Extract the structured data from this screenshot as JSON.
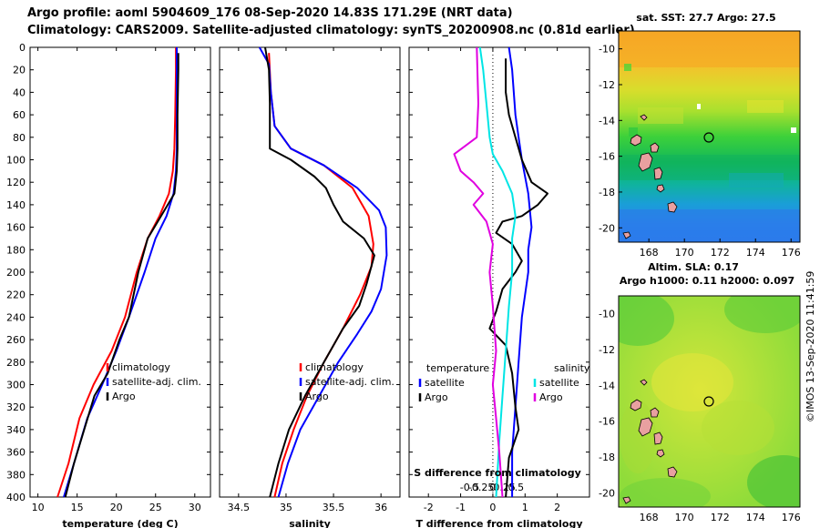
{
  "header": {
    "line1": "Argo profile: aoml 5904609_176 08-Sep-2020 14.83S 171.29E (NRT data)",
    "line2": "Climatology: CARS2009. Satellite-adjusted climatology: synTS_20200908.nc (0.81d earlier)"
  },
  "footer": {
    "stamp": "©IMOS 13-Sep-2020 11:41:59"
  },
  "colors": {
    "climatology": "#ff0000",
    "satellite": "#0000ff",
    "argo": "#000000",
    "t_sat": "#00e5e5",
    "s_diff": "#e000e0"
  },
  "chart_data": [
    {
      "type": "line",
      "id": "temperature",
      "xlabel": "temperature (deg C)",
      "ylabel": "depth",
      "xlim": [
        9,
        32
      ],
      "ylim": [
        400,
        0
      ],
      "xticks": [
        10,
        15,
        20,
        25,
        30
      ],
      "yticks": [
        0,
        20,
        40,
        60,
        80,
        100,
        120,
        140,
        160,
        180,
        200,
        220,
        240,
        260,
        280,
        300,
        320,
        340,
        360,
        380,
        400
      ],
      "legend": [
        "climatology",
        "satellite-adj. clim.",
        "Argo"
      ],
      "series": [
        {
          "name": "climatology",
          "color": "red",
          "points": [
            [
              27.6,
              0
            ],
            [
              27.6,
              20
            ],
            [
              27.5,
              60
            ],
            [
              27.4,
              90
            ],
            [
              27.2,
              110
            ],
            [
              26.7,
              130
            ],
            [
              25.5,
              150
            ],
            [
              24.0,
              170
            ],
            [
              22.6,
              200
            ],
            [
              21.1,
              240
            ],
            [
              19.4,
              270
            ],
            [
              17.1,
              300
            ],
            [
              15.3,
              330
            ],
            [
              13.9,
              370
            ],
            [
              12.5,
              400
            ]
          ]
        },
        {
          "name": "satellite-adj. clim.",
          "color": "blue",
          "points": [
            [
              27.7,
              0
            ],
            [
              27.7,
              20
            ],
            [
              27.7,
              60
            ],
            [
              27.7,
              90
            ],
            [
              27.6,
              110
            ],
            [
              27.3,
              130
            ],
            [
              26.4,
              150
            ],
            [
              25.0,
              170
            ],
            [
              23.6,
              200
            ],
            [
              21.6,
              240
            ],
            [
              20.0,
              270
            ],
            [
              18.2,
              300
            ],
            [
              16.3,
              330
            ],
            [
              14.6,
              370
            ],
            [
              13.3,
              400
            ]
          ]
        },
        {
          "name": "Argo",
          "color": "black",
          "points": [
            [
              27.9,
              5
            ],
            [
              27.9,
              20
            ],
            [
              27.8,
              60
            ],
            [
              27.8,
              90
            ],
            [
              27.7,
              110
            ],
            [
              27.4,
              130
            ],
            [
              25.7,
              150
            ],
            [
              24.0,
              170
            ],
            [
              22.8,
              200
            ],
            [
              21.6,
              240
            ],
            [
              20.4,
              260
            ],
            [
              18.9,
              290
            ],
            [
              17.2,
              310
            ],
            [
              15.9,
              340
            ],
            [
              14.6,
              370
            ],
            [
              13.5,
              400
            ]
          ]
        }
      ]
    },
    {
      "type": "line",
      "id": "salinity",
      "xlabel": "salinity",
      "ylabel": "depth",
      "xlim": [
        34.3,
        36.2
      ],
      "ylim": [
        400,
        0
      ],
      "xticks": [
        34.5,
        35,
        35.5,
        36
      ],
      "yticks": [],
      "legend": [
        "climatology",
        "satellite-adj. clim.",
        "Argo"
      ],
      "series": [
        {
          "name": "climatology",
          "color": "red",
          "points": [
            [
              34.82,
              5
            ],
            [
              34.84,
              40
            ],
            [
              34.88,
              70
            ],
            [
              35.05,
              90
            ],
            [
              35.4,
              105
            ],
            [
              35.7,
              125
            ],
            [
              35.87,
              150
            ],
            [
              35.92,
              175
            ],
            [
              35.9,
              195
            ],
            [
              35.78,
              220
            ],
            [
              35.6,
              250
            ],
            [
              35.4,
              280
            ],
            [
              35.22,
              310
            ],
            [
              35.08,
              340
            ],
            [
              34.96,
              370
            ],
            [
              34.88,
              400
            ]
          ]
        },
        {
          "name": "satellite-adj. clim.",
          "color": "blue",
          "points": [
            [
              34.72,
              0
            ],
            [
              34.82,
              15
            ],
            [
              34.84,
              40
            ],
            [
              34.88,
              70
            ],
            [
              35.05,
              90
            ],
            [
              35.4,
              105
            ],
            [
              35.75,
              125
            ],
            [
              35.98,
              145
            ],
            [
              36.05,
              160
            ],
            [
              36.06,
              185
            ],
            [
              36.0,
              215
            ],
            [
              35.9,
              235
            ],
            [
              35.75,
              255
            ],
            [
              35.55,
              280
            ],
            [
              35.35,
              310
            ],
            [
              35.15,
              340
            ],
            [
              35.02,
              370
            ],
            [
              34.92,
              400
            ]
          ]
        },
        {
          "name": "Argo",
          "color": "black",
          "points": [
            [
              34.78,
              0
            ],
            [
              34.82,
              20
            ],
            [
              34.83,
              50
            ],
            [
              34.83,
              90
            ],
            [
              35.05,
              100
            ],
            [
              35.3,
              115
            ],
            [
              35.42,
              125
            ],
            [
              35.5,
              140
            ],
            [
              35.6,
              155
            ],
            [
              35.82,
              170
            ],
            [
              35.93,
              185
            ],
            [
              35.85,
              210
            ],
            [
              35.77,
              230
            ],
            [
              35.6,
              250
            ],
            [
              35.4,
              280
            ],
            [
              35.2,
              310
            ],
            [
              35.03,
              340
            ],
            [
              34.92,
              370
            ],
            [
              34.83,
              400
            ]
          ]
        }
      ]
    },
    {
      "type": "line",
      "id": "differences",
      "xlabel": "T difference from climatology",
      "xlabel2": "S difference from climatology",
      "xlim": [
        -2.6,
        3.0
      ],
      "ylim": [
        400,
        0
      ],
      "xticks": [
        -2,
        -1,
        0,
        1,
        2
      ],
      "xticks2": [
        -0.5,
        -0.25,
        0,
        0.25,
        0.5
      ],
      "xticks2_labels": [
        "-0.5",
        "-0.25",
        "0",
        "0.25",
        "0.5"
      ],
      "yticks": [],
      "legend_left_title": "temperature",
      "legend_right_title": "salinity",
      "legend_left": [
        "satellite",
        "Argo"
      ],
      "legend_right": [
        "satellite",
        "Argo"
      ],
      "series": [
        {
          "name": "T satellite",
          "color": "blue",
          "points": [
            [
              0.5,
              0
            ],
            [
              0.6,
              20
            ],
            [
              0.7,
              60
            ],
            [
              0.8,
              80
            ],
            [
              0.9,
              100
            ],
            [
              1.1,
              130
            ],
            [
              1.2,
              160
            ],
            [
              1.1,
              180
            ],
            [
              1.1,
              200
            ],
            [
              0.9,
              240
            ],
            [
              0.8,
              280
            ],
            [
              0.7,
              320
            ],
            [
              0.6,
              360
            ],
            [
              0.6,
              400
            ]
          ]
        },
        {
          "name": "T Argo",
          "color": "black",
          "points": [
            [
              0.4,
              10
            ],
            [
              0.4,
              40
            ],
            [
              0.5,
              60
            ],
            [
              0.7,
              80
            ],
            [
              0.9,
              100
            ],
            [
              1.2,
              120
            ],
            [
              1.7,
              130
            ],
            [
              1.4,
              140
            ],
            [
              0.9,
              150
            ],
            [
              0.3,
              155
            ],
            [
              0.1,
              165
            ],
            [
              0.6,
              175
            ],
            [
              0.9,
              190
            ],
            [
              0.7,
              200
            ],
            [
              0.3,
              215
            ],
            [
              0.1,
              235
            ],
            [
              -0.1,
              250
            ],
            [
              0.4,
              265
            ],
            [
              0.6,
              290
            ],
            [
              0.7,
              320
            ],
            [
              0.8,
              340
            ],
            [
              0.5,
              365
            ],
            [
              0.4,
              400
            ]
          ]
        },
        {
          "name": "S satellite",
          "color": "cyan",
          "points": [
            [
              -0.4,
              0
            ],
            [
              -0.3,
              20
            ],
            [
              -0.2,
              50
            ],
            [
              -0.1,
              80
            ],
            [
              0.0,
              95
            ],
            [
              0.3,
              110
            ],
            [
              0.6,
              130
            ],
            [
              0.7,
              150
            ],
            [
              0.6,
              170
            ],
            [
              0.6,
              200
            ],
            [
              0.5,
              230
            ],
            [
              0.4,
              270
            ],
            [
              0.3,
              310
            ],
            [
              0.2,
              350
            ],
            [
              0.1,
              400
            ]
          ]
        },
        {
          "name": "S Argo",
          "color": "magenta",
          "points": [
            [
              -0.5,
              0
            ],
            [
              -0.45,
              50
            ],
            [
              -0.5,
              80
            ],
            [
              -1.2,
              95
            ],
            [
              -1.0,
              110
            ],
            [
              -0.6,
              120
            ],
            [
              -0.3,
              130
            ],
            [
              -0.6,
              140
            ],
            [
              -0.2,
              155
            ],
            [
              0.0,
              175
            ],
            [
              -0.1,
              200
            ],
            [
              0.0,
              230
            ],
            [
              0.1,
              270
            ],
            [
              0.0,
              300
            ],
            [
              0.1,
              330
            ],
            [
              0.2,
              360
            ],
            [
              0.3,
              400
            ]
          ]
        }
      ]
    },
    {
      "type": "heatmap",
      "id": "sst_map",
      "title": "sat. SST: 27.7 Argo: 27.5",
      "xticks": [
        168,
        170,
        172,
        174,
        176
      ],
      "yticks": [
        -10,
        -12,
        -14,
        -16,
        -18,
        -20
      ],
      "xlim": [
        166.3,
        176.5
      ],
      "ylim": [
        -20.8,
        -9.0
      ],
      "argo_position": [
        171.29,
        -14.83
      ]
    },
    {
      "type": "heatmap",
      "id": "sla_map",
      "title": "Altim. SLA: 0.17",
      "subtitle": "Argo h1000: 0.11 h2000: 0.097",
      "xticks": [
        168,
        170,
        172,
        174,
        176
      ],
      "yticks": [
        -10,
        -12,
        -14,
        -16,
        -18,
        -20
      ],
      "xlim": [
        166.3,
        176.5
      ],
      "ylim": [
        -20.8,
        -9.0
      ],
      "argo_position": [
        171.29,
        -14.83
      ]
    }
  ]
}
